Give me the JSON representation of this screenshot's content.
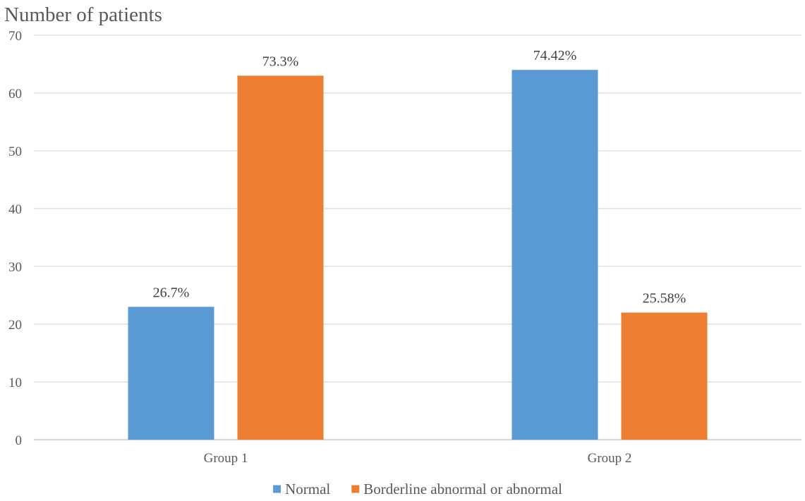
{
  "chart_data": {
    "type": "bar",
    "title": "",
    "xlabel": "",
    "ylabel": "Number of patients",
    "ylim": [
      0,
      70
    ],
    "yticks": [
      0,
      10,
      20,
      30,
      40,
      50,
      60,
      70
    ],
    "categories": [
      "Group 1",
      "Group 2"
    ],
    "series": [
      {
        "name": "Normal",
        "color": "#5b9bd5",
        "values": [
          23,
          64
        ],
        "labels": [
          "26.7%",
          "74.42%"
        ]
      },
      {
        "name": "Borderline abnormal or abnormal",
        "color": "#ed7d31",
        "values": [
          63,
          22
        ],
        "labels": [
          "73.3%",
          "25.58%"
        ]
      }
    ],
    "grid": true,
    "legend": "bottom"
  }
}
